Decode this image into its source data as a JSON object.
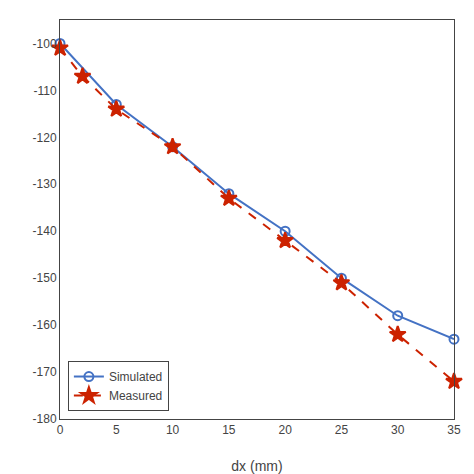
{
  "chart_data": {
    "type": "line",
    "xlabel": "dx (mm)",
    "series": [
      {
        "name": "Simulated",
        "color": "#4472c4",
        "marker": "circle-open",
        "line_style": "solid",
        "x": [
          0,
          5,
          10,
          15,
          20,
          25,
          30,
          35
        ],
        "values": [
          -100,
          -113,
          -122,
          -132,
          -140,
          -150,
          -158,
          -163
        ]
      },
      {
        "name": "Measured",
        "color": "#cc2200",
        "marker": "star",
        "line_style": "dashed",
        "x": [
          0,
          2,
          5,
          10,
          15,
          20,
          25,
          30,
          35
        ],
        "values": [
          -101,
          -107,
          -114,
          -122,
          -133,
          -142,
          -151,
          -162,
          -172
        ]
      }
    ],
    "xlim": [
      0,
      35
    ],
    "ylim": [
      -180,
      -95
    ],
    "xticks": [
      0,
      5,
      10,
      15,
      20,
      25,
      30,
      35
    ],
    "yticks": [
      -180,
      -170,
      -160,
      -150,
      -140,
      -130,
      -120,
      -110,
      -100
    ],
    "grid": false,
    "legend": "lower left"
  }
}
